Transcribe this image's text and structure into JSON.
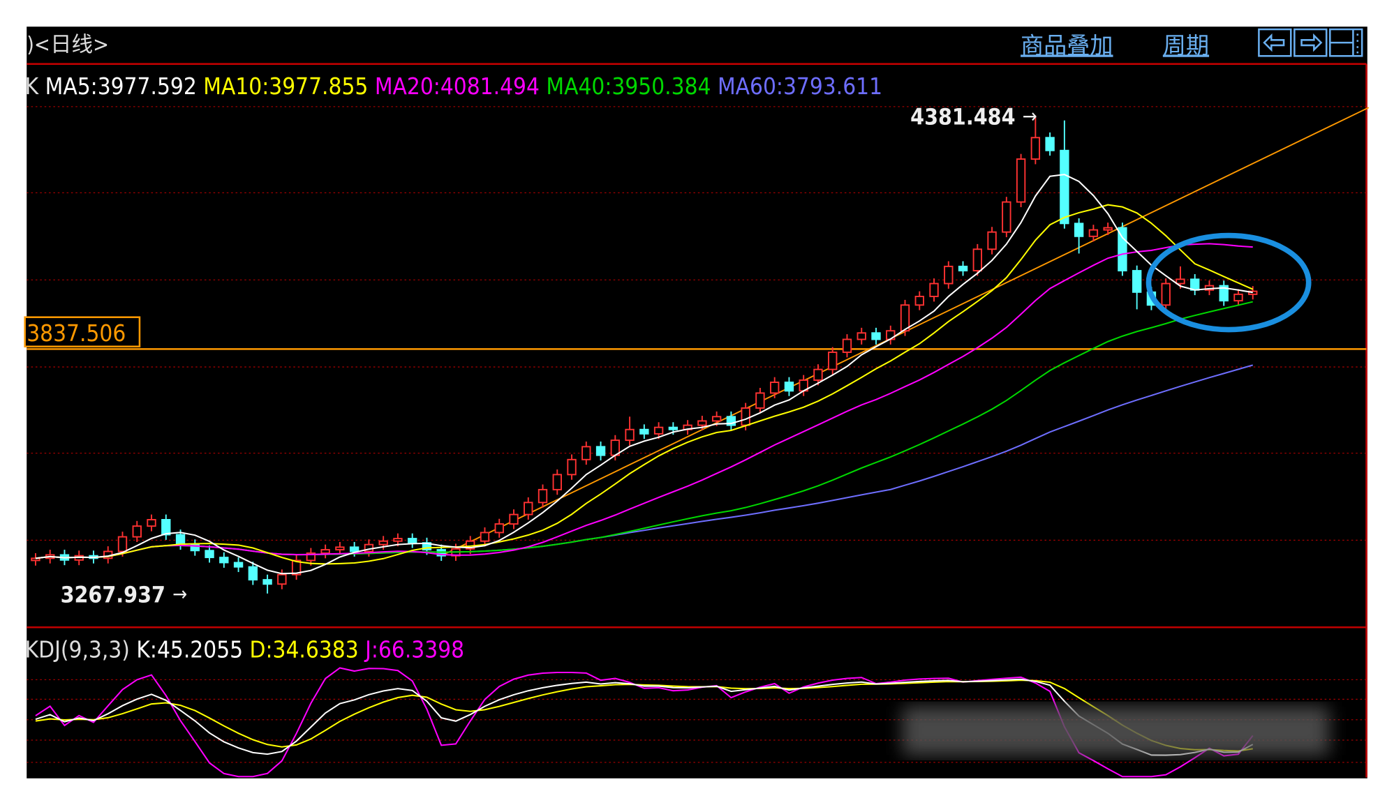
{
  "header": {
    "title": ")<日线>",
    "overlay_link": "商品叠加",
    "period_link": "周期",
    "icons": [
      "arrow-left-icon",
      "arrow-right-icon",
      "layout-icon"
    ]
  },
  "colors": {
    "background": "#000000",
    "border": "#c00000",
    "up": "#ff3232",
    "down": "#54ffff",
    "ma5": "#ffffff",
    "ma10": "#ffff00",
    "ma20": "#ff00ff",
    "ma40": "#00d800",
    "ma60": "#6e6eff",
    "trend": "#ff9900",
    "highlight_circle": "#1a8fe0",
    "link": "#6aaff0"
  },
  "ma_legend": {
    "prefix": "K",
    "ma5": "MA5:3977.592",
    "ma10": "MA10:3977.855",
    "ma20": "MA20:4081.494",
    "ma40": "MA40:3950.384",
    "ma60": "MA60:3793.611"
  },
  "kdj_legend": {
    "name": "KDJ(9,3,3)",
    "k": "K:45.2055",
    "d": "D:34.6383",
    "j": "J:66.3398"
  },
  "chart_data": {
    "type": "candlestick",
    "price_label": "3837.506",
    "price_line": 3837.506,
    "high_label": "4381.484",
    "low_label": "3267.937",
    "high": 4381.484,
    "low": 3267.937,
    "ylim": [
      3225,
      4400
    ],
    "grid": true,
    "ma_periods": [
      5,
      10,
      20,
      40,
      60
    ],
    "kdj_params": [
      9,
      3,
      3
    ],
    "candles_ohlc": [
      [
        3345,
        3362,
        3333,
        3350
      ],
      [
        3350,
        3370,
        3338,
        3358
      ],
      [
        3358,
        3370,
        3334,
        3346
      ],
      [
        3346,
        3368,
        3334,
        3356
      ],
      [
        3356,
        3368,
        3338,
        3350
      ],
      [
        3350,
        3378,
        3338,
        3366
      ],
      [
        3366,
        3412,
        3354,
        3400
      ],
      [
        3400,
        3437,
        3388,
        3425
      ],
      [
        3425,
        3452,
        3413,
        3440
      ],
      [
        3440,
        3452,
        3393,
        3405
      ],
      [
        3405,
        3417,
        3370,
        3382
      ],
      [
        3382,
        3394,
        3356,
        3368
      ],
      [
        3368,
        3380,
        3340,
        3352
      ],
      [
        3352,
        3364,
        3328,
        3340
      ],
      [
        3340,
        3352,
        3318,
        3330
      ],
      [
        3330,
        3342,
        3288,
        3300
      ],
      [
        3300,
        3312,
        3267.937,
        3290
      ],
      [
        3290,
        3324,
        3278,
        3312
      ],
      [
        3312,
        3357,
        3300,
        3345
      ],
      [
        3345,
        3374,
        3333,
        3362
      ],
      [
        3362,
        3382,
        3350,
        3370
      ],
      [
        3370,
        3388,
        3358,
        3376
      ],
      [
        3376,
        3388,
        3354,
        3366
      ],
      [
        3366,
        3394,
        3354,
        3382
      ],
      [
        3382,
        3402,
        3370,
        3390
      ],
      [
        3390,
        3408,
        3378,
        3396
      ],
      [
        3396,
        3408,
        3374,
        3386
      ],
      [
        3386,
        3398,
        3358,
        3370
      ],
      [
        3370,
        3382,
        3344,
        3356
      ],
      [
        3356,
        3384,
        3344,
        3372
      ],
      [
        3372,
        3402,
        3360,
        3390
      ],
      [
        3390,
        3422,
        3378,
        3410
      ],
      [
        3410,
        3442,
        3398,
        3430
      ],
      [
        3430,
        3464,
        3418,
        3452
      ],
      [
        3452,
        3492,
        3440,
        3480
      ],
      [
        3480,
        3522,
        3468,
        3510
      ],
      [
        3510,
        3557,
        3498,
        3545
      ],
      [
        3545,
        3592,
        3533,
        3580
      ],
      [
        3580,
        3622,
        3568,
        3610
      ],
      [
        3610,
        3622,
        3578,
        3590
      ],
      [
        3590,
        3637,
        3578,
        3625
      ],
      [
        3625,
        3680,
        3613,
        3650
      ],
      [
        3650,
        3662,
        3628,
        3640
      ],
      [
        3640,
        3667,
        3628,
        3655
      ],
      [
        3655,
        3667,
        3638,
        3650
      ],
      [
        3650,
        3672,
        3638,
        3660
      ],
      [
        3660,
        3682,
        3648,
        3670
      ],
      [
        3670,
        3692,
        3658,
        3680
      ],
      [
        3680,
        3692,
        3648,
        3660
      ],
      [
        3660,
        3712,
        3648,
        3700
      ],
      [
        3700,
        3747,
        3688,
        3735
      ],
      [
        3735,
        3772,
        3723,
        3760
      ],
      [
        3760,
        3772,
        3728,
        3740
      ],
      [
        3740,
        3777,
        3728,
        3765
      ],
      [
        3765,
        3802,
        3753,
        3790
      ],
      [
        3790,
        3842,
        3778,
        3830
      ],
      [
        3830,
        3872,
        3818,
        3860
      ],
      [
        3860,
        3887,
        3848,
        3875
      ],
      [
        3875,
        3887,
        3848,
        3860
      ],
      [
        3860,
        3892,
        3848,
        3880
      ],
      [
        3880,
        3952,
        3868,
        3940
      ],
      [
        3940,
        3972,
        3928,
        3960
      ],
      [
        3960,
        4002,
        3948,
        3990
      ],
      [
        3990,
        4042,
        3978,
        4030
      ],
      [
        4030,
        4042,
        4008,
        4020
      ],
      [
        4020,
        4082,
        4008,
        4070
      ],
      [
        4070,
        4122,
        4058,
        4110
      ],
      [
        4110,
        4192,
        4098,
        4180
      ],
      [
        4180,
        4292,
        4168,
        4280
      ],
      [
        4280,
        4381.484,
        4268,
        4330
      ],
      [
        4330,
        4342,
        4288,
        4300
      ],
      [
        4300,
        4370,
        4118,
        4130
      ],
      [
        4130,
        4142,
        4060,
        4100
      ],
      [
        4100,
        4127,
        4088,
        4115
      ],
      [
        4115,
        4132,
        4103,
        4120
      ],
      [
        4120,
        4132,
        4008,
        4020
      ],
      [
        4020,
        4032,
        3930,
        3970
      ],
      [
        3970,
        3982,
        3928,
        3940
      ],
      [
        3940,
        4002,
        3928,
        3990
      ],
      [
        3990,
        4030,
        3978,
        4000
      ],
      [
        4000,
        4012,
        3963,
        3975
      ],
      [
        3975,
        3997,
        3963,
        3985
      ],
      [
        3985,
        3997,
        3938,
        3950
      ],
      [
        3950,
        3977,
        3938,
        3965
      ],
      [
        3965,
        3984,
        3953,
        3972
      ]
    ],
    "trendline": [
      [
        3356,
        28
      ],
      [
        4400,
        92
      ]
    ]
  }
}
